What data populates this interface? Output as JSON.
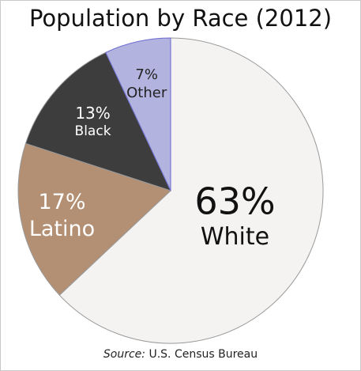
{
  "chart_data": {
    "type": "pie",
    "title": "Population by Race (2012)",
    "slices": [
      {
        "label": "White",
        "value": 63,
        "pct_label": "63%",
        "color": "#f5f3f2"
      },
      {
        "label": "Latino",
        "value": 17,
        "pct_label": "17%",
        "color": "#b38f73"
      },
      {
        "label": "Black",
        "value": 13,
        "pct_label": "13%",
        "color": "#3d3d3d"
      },
      {
        "label": "Other",
        "value": 7,
        "pct_label": "7%",
        "color": "#b3b3e0"
      }
    ],
    "start": "12 o'clock",
    "direction": "clockwise",
    "source_prefix": "Source:",
    "source_text": "U.S. Census Bureau"
  }
}
